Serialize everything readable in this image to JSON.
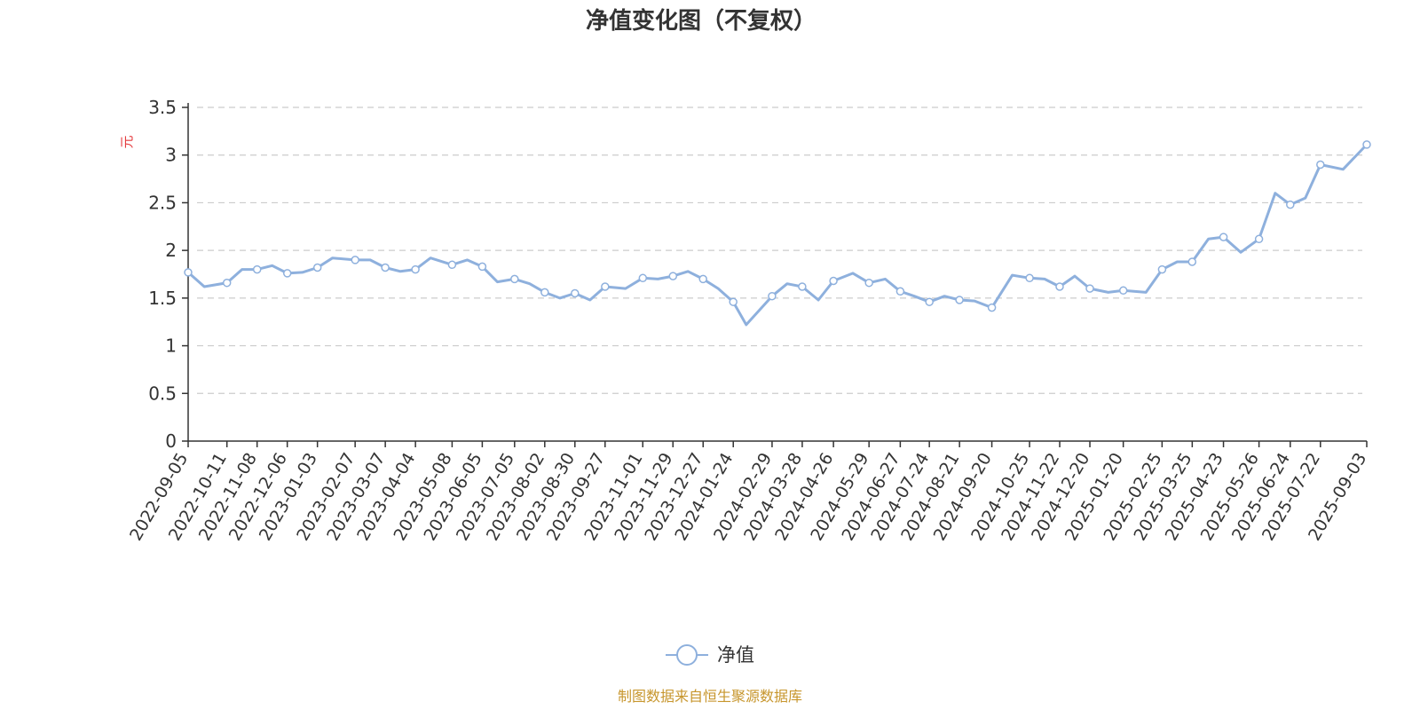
{
  "chart_data": {
    "type": "line",
    "title": "净值变化图（不复权）",
    "ylabel": "元",
    "ylim": [
      0,
      3.5
    ],
    "yticks": [
      "0",
      "0.5",
      "1",
      "1.5",
      "2",
      "2.5",
      "3",
      "3.5"
    ],
    "grid": true,
    "legend_position": "bottom-center",
    "colors": {
      "line": "#8eb0dd",
      "grid": "#cccccc",
      "axis": "#333333",
      "unit": "#e4393c",
      "source": "#c7962d"
    },
    "x_tick_labels": [
      "2022-09-05",
      "2022-10-11",
      "2022-11-08",
      "2022-12-06",
      "2023-01-03",
      "2023-02-07",
      "2023-03-07",
      "2023-04-04",
      "2023-05-08",
      "2023-06-05",
      "2023-07-05",
      "2023-08-02",
      "2023-08-30",
      "2023-09-27",
      "2023-11-01",
      "2023-11-29",
      "2023-12-27",
      "2024-01-24",
      "2024-02-29",
      "2024-03-28",
      "2024-04-26",
      "2024-05-29",
      "2024-06-27",
      "2024-07-24",
      "2024-08-21",
      "2024-09-20",
      "2024-10-25",
      "2024-11-22",
      "2024-12-20",
      "2025-01-20",
      "2025-02-25",
      "2025-03-25",
      "2025-04-23",
      "2025-05-26",
      "2025-06-24",
      "2025-07-22",
      "2025-09-03"
    ],
    "series": [
      {
        "name": "净值",
        "x": [
          "2022-09-05",
          "2022-09-20",
          "2022-10-11",
          "2022-10-25",
          "2022-11-08",
          "2022-11-22",
          "2022-12-06",
          "2022-12-20",
          "2023-01-03",
          "2023-01-17",
          "2023-02-07",
          "2023-02-21",
          "2023-03-07",
          "2023-03-21",
          "2023-04-04",
          "2023-04-18",
          "2023-05-08",
          "2023-05-22",
          "2023-06-05",
          "2023-06-19",
          "2023-07-05",
          "2023-07-19",
          "2023-08-02",
          "2023-08-16",
          "2023-08-30",
          "2023-09-13",
          "2023-09-27",
          "2023-10-16",
          "2023-11-01",
          "2023-11-15",
          "2023-11-29",
          "2023-12-13",
          "2023-12-27",
          "2024-01-10",
          "2024-01-24",
          "2024-02-05",
          "2024-02-29",
          "2024-03-14",
          "2024-03-28",
          "2024-04-12",
          "2024-04-26",
          "2024-05-14",
          "2024-05-29",
          "2024-06-13",
          "2024-06-27",
          "2024-07-10",
          "2024-07-24",
          "2024-08-07",
          "2024-08-21",
          "2024-09-04",
          "2024-09-20",
          "2024-10-09",
          "2024-10-25",
          "2024-11-08",
          "2024-11-22",
          "2024-12-06",
          "2024-12-20",
          "2025-01-06",
          "2025-01-20",
          "2025-02-10",
          "2025-02-25",
          "2025-03-11",
          "2025-03-25",
          "2025-04-09",
          "2025-04-23",
          "2025-05-09",
          "2025-05-26",
          "2025-06-10",
          "2025-06-24",
          "2025-07-08",
          "2025-07-22",
          "2025-08-12",
          "2025-09-03"
        ],
        "values": [
          1.77,
          1.62,
          1.66,
          1.8,
          1.8,
          1.84,
          1.76,
          1.77,
          1.82,
          1.92,
          1.9,
          1.9,
          1.82,
          1.78,
          1.8,
          1.92,
          1.85,
          1.9,
          1.83,
          1.67,
          1.7,
          1.65,
          1.56,
          1.5,
          1.55,
          1.48,
          1.62,
          1.6,
          1.71,
          1.7,
          1.73,
          1.78,
          1.7,
          1.6,
          1.46,
          1.22,
          1.52,
          1.65,
          1.62,
          1.48,
          1.68,
          1.76,
          1.66,
          1.7,
          1.57,
          1.52,
          1.46,
          1.52,
          1.48,
          1.47,
          1.4,
          1.74,
          1.71,
          1.7,
          1.62,
          1.73,
          1.6,
          1.56,
          1.58,
          1.56,
          1.8,
          1.88,
          1.88,
          2.12,
          2.14,
          1.98,
          2.12,
          2.6,
          2.48,
          2.55,
          2.9,
          2.85,
          3.11
        ]
      }
    ]
  },
  "legend": {
    "label": "净值"
  },
  "footer": {
    "source": "制图数据来自恒生聚源数据库"
  }
}
